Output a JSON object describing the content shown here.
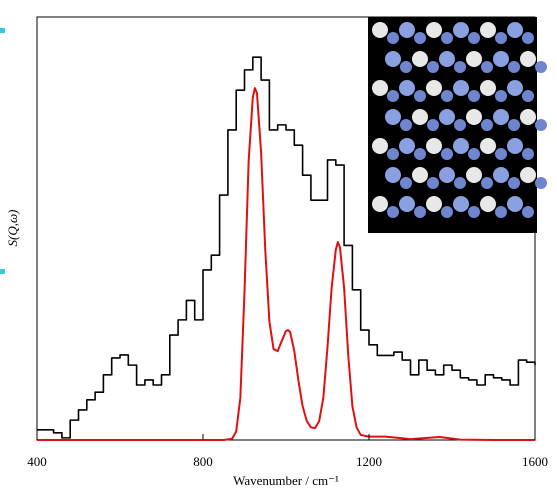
{
  "chart_data": {
    "type": "line",
    "xlabel": "Wavenumber / cm⁻¹",
    "ylabel": "S(Q,ω)",
    "xlim": [
      400,
      1600
    ],
    "xticks": [
      400,
      800,
      1200,
      1600
    ],
    "ylim": [
      0,
      100
    ],
    "series": [
      {
        "color": "#000000",
        "drawstyle": "steps",
        "x": [
          400,
          420,
          440,
          460,
          480,
          500,
          520,
          540,
          560,
          580,
          600,
          620,
          640,
          660,
          680,
          700,
          720,
          740,
          760,
          780,
          800,
          820,
          840,
          860,
          880,
          900,
          920,
          940,
          960,
          980,
          1000,
          1020,
          1040,
          1060,
          1080,
          1100,
          1120,
          1140,
          1160,
          1180,
          1200,
          1220,
          1240,
          1260,
          1280,
          1300,
          1320,
          1340,
          1360,
          1380,
          1400,
          1420,
          1440,
          1460,
          1480,
          1500,
          1520,
          1540,
          1560,
          1580,
          1600
        ],
        "values": [
          2.4,
          2.4,
          1.7,
          0.5,
          4.7,
          7.1,
          9.5,
          11.3,
          15.4,
          19.4,
          20.1,
          17.7,
          13,
          14.2,
          13,
          15.4,
          24.8,
          28.4,
          33,
          28.4,
          40.2,
          43.7,
          57.9,
          73.3,
          82.7,
          87.5,
          90.5,
          85.1,
          73.3,
          74.5,
          73.3,
          69.7,
          62.6,
          56.7,
          56.7,
          66.2,
          65,
          46,
          35.5,
          26,
          22.5,
          20,
          20,
          20.8,
          18.9,
          15.4,
          18.9,
          16.5,
          15.4,
          17.7,
          16.5,
          14.7,
          14.2,
          13,
          15.4,
          14.7,
          14.2,
          13,
          18.9,
          18.4,
          17.7
        ]
      },
      {
        "color": "#e01010",
        "drawstyle": "smooth",
        "x": [
          400,
          800,
          850,
          870,
          880,
          890,
          900,
          910,
          920,
          925,
          930,
          940,
          950,
          960,
          970,
          980,
          990,
          1000,
          1005,
          1010,
          1020,
          1030,
          1040,
          1050,
          1060,
          1070,
          1080,
          1090,
          1100,
          1110,
          1120,
          1125,
          1130,
          1140,
          1150,
          1160,
          1170,
          1180,
          1200,
          1240,
          1300,
          1370,
          1420,
          1500,
          1600
        ],
        "values": [
          0,
          0,
          0,
          0.3,
          2,
          10,
          35,
          66,
          81,
          83.2,
          82,
          68,
          45,
          28,
          21.5,
          21,
          23.5,
          25.8,
          26,
          25.5,
          21,
          14,
          8,
          4.5,
          3,
          2.8,
          4.5,
          10,
          22,
          36,
          45,
          46.8,
          45.5,
          36,
          20,
          8,
          3,
          1.2,
          0.8,
          0.8,
          0.2,
          0.7,
          0.1,
          0,
          0
        ]
      }
    ]
  }
}
